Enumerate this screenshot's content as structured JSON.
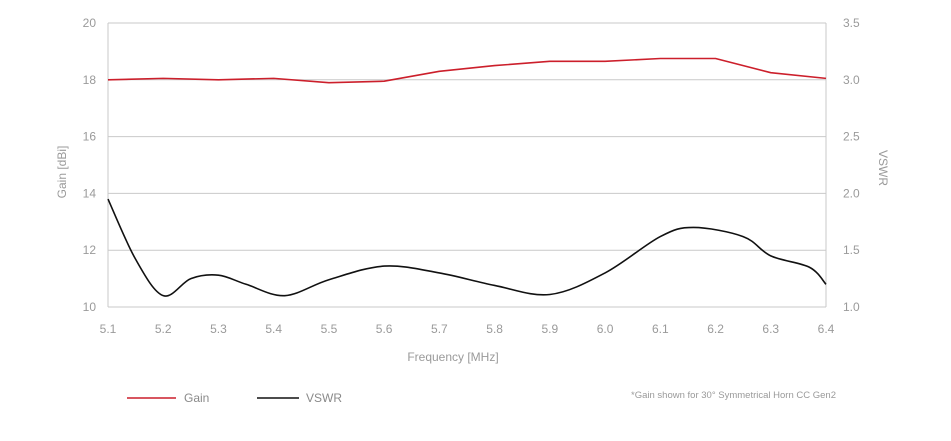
{
  "chart_data": {
    "type": "line",
    "xlabel": "Frequency [MHz]",
    "ylabel_left": "Gain [dBi]",
    "ylabel_right": "VSWR",
    "xlim": [
      5.1,
      6.4
    ],
    "ylim_left": [
      10,
      20
    ],
    "ylim_right": [
      1.0,
      3.5
    ],
    "x_ticks": [
      "5.1",
      "5.2",
      "5.3",
      "5.4",
      "5.5",
      "5.6",
      "5.7",
      "5.8",
      "5.9",
      "6.0",
      "6.1",
      "6.2",
      "6.3",
      "6.4"
    ],
    "y_left_ticks": [
      "10",
      "12",
      "14",
      "16",
      "18",
      "20"
    ],
    "y_right_ticks": [
      "1.0",
      "1.5",
      "2.0",
      "2.5",
      "3.0",
      "3.5"
    ],
    "grid": true,
    "legend_placement": "bottom-left",
    "note": "*Gain shown for 30° Symmetrical Horn CC Gen2",
    "series": [
      {
        "name": "Gain",
        "axis": "left",
        "color": "#cc1f2b",
        "x": [
          5.1,
          5.2,
          5.3,
          5.4,
          5.5,
          5.6,
          5.7,
          5.8,
          5.9,
          6.0,
          6.1,
          6.2,
          6.3,
          6.4
        ],
        "y": [
          18.0,
          18.05,
          18.0,
          18.05,
          17.9,
          17.95,
          18.3,
          18.5,
          18.65,
          18.65,
          18.75,
          18.75,
          18.25,
          18.05
        ]
      },
      {
        "name": "VSWR",
        "axis": "right",
        "color": "#111111",
        "x": [
          5.1,
          5.15,
          5.2,
          5.25,
          5.3,
          5.35,
          5.42,
          5.5,
          5.6,
          5.7,
          5.8,
          5.9,
          6.0,
          6.1,
          6.16,
          6.25,
          6.3,
          6.37,
          6.4
        ],
        "y": [
          1.95,
          1.42,
          1.1,
          1.25,
          1.28,
          1.2,
          1.1,
          1.24,
          1.36,
          1.3,
          1.19,
          1.11,
          1.3,
          1.62,
          1.7,
          1.62,
          1.45,
          1.35,
          1.2
        ]
      }
    ]
  }
}
